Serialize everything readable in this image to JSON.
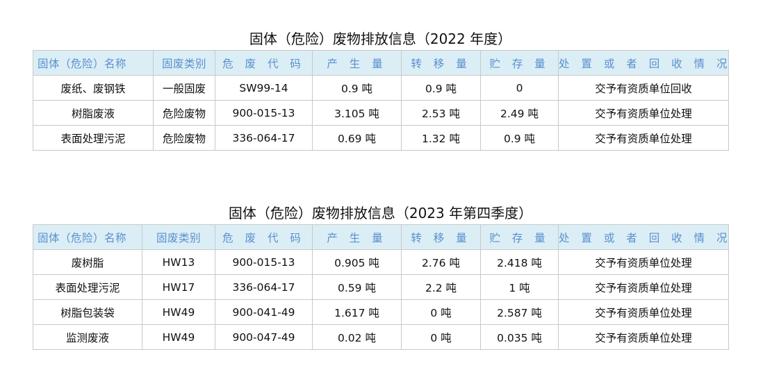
{
  "headers": [
    "固体（危险）名称",
    "固废类别",
    "危 废 代 码",
    "产 生 量",
    "转 移 量",
    "贮 存 量",
    "处 置 或 者 回 收 情 况"
  ],
  "colors": {
    "header_bg": "#dbeef5",
    "header_text": "#5a8fd0",
    "border": "#c8c8c8"
  },
  "tables": [
    {
      "title": "固体（危险）废物排放信息（2022 年度）",
      "rows": [
        [
          "废纸、废钢铁",
          "一般固废",
          "SW99-14",
          "0.9 吨",
          "0.9 吨",
          "0",
          "交予有资质单位回收"
        ],
        [
          "树脂废液",
          "危险废物",
          "900-015-13",
          "3.105 吨",
          "2.53 吨",
          "2.49 吨",
          "交予有资质单位处理"
        ],
        [
          "表面处理污泥",
          "危险废物",
          "336-064-17",
          "0.69 吨",
          "1.32 吨",
          "0.9 吨",
          "交予有资质单位处理"
        ]
      ]
    },
    {
      "title": "固体（危险）废物排放信息（2023 年第四季度）",
      "rows": [
        [
          "废树脂",
          "HW13",
          "900-015-13",
          "0.905 吨",
          "2.76 吨",
          "2.418 吨",
          "交予有资质单位处理"
        ],
        [
          "表面处理污泥",
          "HW17",
          "336-064-17",
          "0.59 吨",
          "2.2 吨",
          "1 吨",
          "交予有资质单位处理"
        ],
        [
          "树脂包装袋",
          "HW49",
          "900-041-49",
          "1.617 吨",
          "0 吨",
          "2.587 吨",
          "交予有资质单位处理"
        ],
        [
          "监测废液",
          "HW49",
          "900-047-49",
          "0.02 吨",
          "0 吨",
          "0.035 吨",
          "交予有资质单位处理"
        ]
      ]
    }
  ]
}
